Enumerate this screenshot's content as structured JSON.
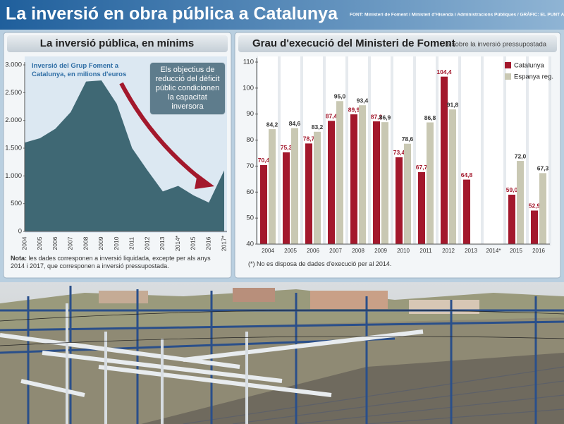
{
  "header": {
    "title": "La inversió en obra pública a Catalunya",
    "source": "FONT: Ministeri de Foment i Ministeri d'Hisenda i Administracions Públiques / GRÀFIC: EL PUNT AVUI"
  },
  "chart_data": [
    {
      "type": "area",
      "title": "La inversió pública, en mínims",
      "categories": [
        "2004",
        "2005",
        "2006",
        "2007",
        "2008",
        "2009",
        "2010",
        "2011",
        "2012",
        "2013",
        "2014*",
        "2015",
        "2016",
        "2017*"
      ],
      "series": [
        {
          "name": "Inversió del Grup Foment a Catalunya, en milions d'euros",
          "color": "#3f6874",
          "values": [
            1600,
            1680,
            1850,
            2150,
            2700,
            2720,
            2300,
            1500,
            1100,
            720,
            820,
            650,
            520,
            1100
          ]
        }
      ],
      "ylim": [
        0,
        3000
      ],
      "yticks": [
        0,
        500,
        {
          "value": 1000,
          "label": "1.000"
        },
        {
          "value": 1500,
          "label": "1.500"
        },
        {
          "value": 2000,
          "label": "2.000"
        },
        {
          "value": 2500,
          "label": "2.500"
        },
        {
          "value": 3000,
          "label": "3.000"
        }
      ],
      "annotation": "Els objectius de reducció del dèficit públic condicionen la capacitat inversora",
      "note_label": "Nota:",
      "note": "les dades corresponen a inversió liquidada, excepte per als anys 2014 i 2017, que corresponen a inversió pressupostada."
    },
    {
      "type": "bar",
      "title": "Grau d'execució del Ministeri de Foment",
      "subtitle": "- % sobre la inversió pressupostada",
      "categories": [
        "2004",
        "2005",
        "2006",
        "2007",
        "2008",
        "2009",
        "2010",
        "2011",
        "2012",
        "2013",
        "2014*",
        "2015",
        "2016"
      ],
      "series": [
        {
          "name": "Catalunya",
          "color": "#a3182c",
          "values": [
            70.4,
            75.3,
            78.7,
            87.4,
            89.9,
            87.2,
            73.4,
            67.7,
            104.4,
            64.8,
            null,
            59.0,
            52.9
          ],
          "value_labels": [
            "70,4",
            "75,3",
            "78,7",
            "87,4",
            "89,9",
            "87,2",
            "73,4",
            "67,7",
            "104,4",
            "64,8",
            null,
            "59,0",
            "52,9"
          ]
        },
        {
          "name": "Espanya reg.",
          "color": "#c9c8b3",
          "values": [
            84.2,
            84.6,
            83.2,
            95.0,
            93.4,
            86.9,
            78.6,
            86.8,
            91.8,
            null,
            null,
            72.0,
            67.3
          ],
          "value_labels": [
            "84,2",
            "84,6",
            "83,2",
            "95,0",
            "93,4",
            "86,9",
            "78,6",
            "86,8",
            "91,8",
            null,
            null,
            "72,0",
            "67,3"
          ]
        }
      ],
      "ylim": [
        40,
        110
      ],
      "yticks": [
        40,
        50,
        60,
        70,
        80,
        90,
        100,
        110
      ],
      "footnote": "(*) No es disposa de dades d'execució per al 2014."
    }
  ]
}
